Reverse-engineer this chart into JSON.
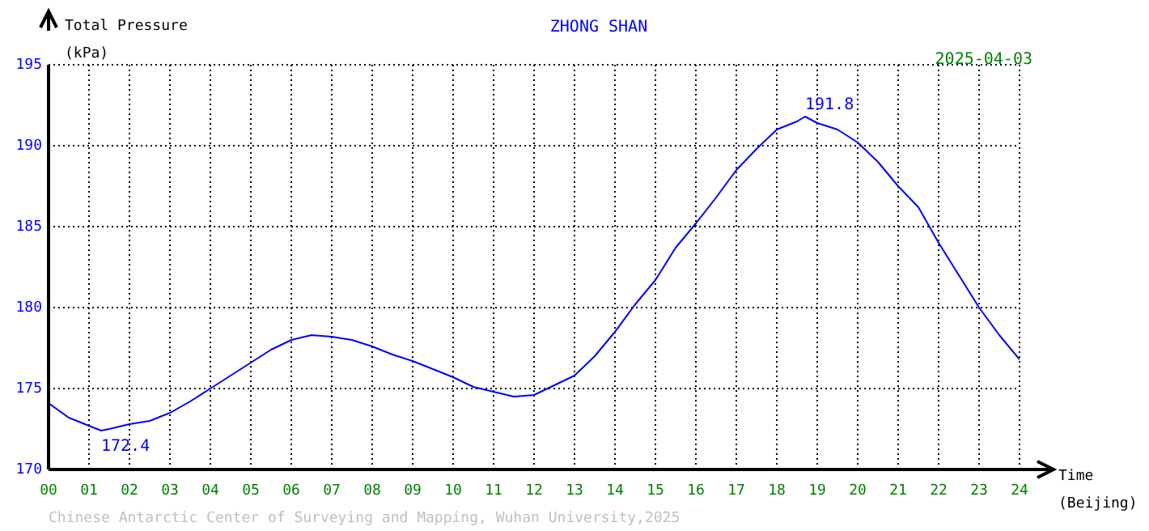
{
  "chart_data": {
    "type": "line",
    "title": "ZHONG SHAN",
    "subtitle": "2025-04-03",
    "ylabel": "Total Pressure\n(kPa)",
    "xlabel": "Time\n(Beijing)",
    "x": [
      0,
      0.5,
      1,
      1.3,
      1.5,
      2,
      2.5,
      3,
      3.5,
      4,
      4.5,
      5,
      5.5,
      6,
      6.5,
      7,
      7.5,
      8,
      8.5,
      9,
      9.5,
      10,
      10.5,
      11,
      11.5,
      12,
      12.5,
      13,
      13.5,
      14,
      14.5,
      15,
      15.5,
      16,
      16.5,
      17,
      17.5,
      18,
      18.5,
      18.7,
      19,
      19.5,
      20,
      20.5,
      21,
      21.5,
      22,
      22.5,
      23,
      23.5,
      24
    ],
    "series": [
      {
        "color": "#0000ff",
        "values": [
          174.1,
          173.2,
          172.7,
          172.4,
          172.5,
          172.8,
          173.0,
          173.5,
          174.2,
          175.0,
          175.8,
          176.6,
          177.4,
          178.0,
          178.3,
          178.2,
          178.0,
          177.6,
          177.1,
          176.7,
          176.2,
          175.7,
          175.1,
          174.8,
          174.5,
          174.6,
          175.2,
          175.8,
          177.0,
          178.5,
          180.2,
          181.7,
          183.7,
          185.2,
          186.8,
          188.5,
          189.8,
          191.0,
          191.5,
          191.8,
          191.4,
          191.0,
          190.2,
          189.0,
          187.5,
          186.2,
          184.0,
          182.0,
          180.0,
          178.3,
          176.8
        ]
      }
    ],
    "xlim": [
      0,
      24
    ],
    "xticks": [
      {
        "value": 0,
        "label": "00"
      },
      {
        "value": 1,
        "label": "01"
      },
      {
        "value": 2,
        "label": "02"
      },
      {
        "value": 3,
        "label": "03"
      },
      {
        "value": 4,
        "label": "04"
      },
      {
        "value": 5,
        "label": "05"
      },
      {
        "value": 6,
        "label": "06"
      },
      {
        "value": 7,
        "label": "07"
      },
      {
        "value": 8,
        "label": "08"
      },
      {
        "value": 9,
        "label": "09"
      },
      10,
      11,
      12,
      13,
      14,
      15,
      16,
      17,
      18,
      19,
      20,
      21,
      22,
      23,
      24
    ],
    "ylim": [
      170,
      195
    ],
    "yticks": [
      170,
      175,
      180,
      185,
      190,
      195
    ],
    "grid": true,
    "legend": false,
    "marker": "none",
    "line_style": "solid",
    "annotations": [
      {
        "text": "172.4",
        "x": 1.3,
        "y": 172.4
      },
      {
        "text": "191.8",
        "x": 18.7,
        "y": 191.8
      },
      "Chinese Antarctic Center of Surveying and Mapping, Wuhan University,2025"
    ]
  }
}
